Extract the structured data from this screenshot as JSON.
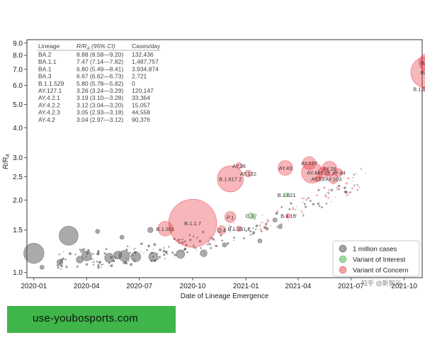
{
  "chart_data": {
    "type": "scatter",
    "xlabel": "Date of Lineage Emergence",
    "ylabel": "R/R",
    "ylabel_sub": "A",
    "xlim": [
      "2019-12-20",
      "2021-11-01"
    ],
    "ylim": [
      0.95,
      9.3
    ],
    "yscale": "log",
    "xticks": [
      {
        "date": "2020-01-01",
        "label": "2020-01"
      },
      {
        "date": "2020-04-01",
        "label": "2020-04"
      },
      {
        "date": "2020-07-01",
        "label": "2020-07"
      },
      {
        "date": "2020-10-01",
        "label": "2020-10"
      },
      {
        "date": "2021-01-01",
        "label": "2021-01"
      },
      {
        "date": "2021-04-01",
        "label": "2021-04"
      },
      {
        "date": "2021-07-01",
        "label": "2021-07"
      },
      {
        "date": "2021-10-01",
        "label": "2021-10"
      }
    ],
    "yticks": [
      {
        "value": 1.0,
        "label": "1.0"
      },
      {
        "value": 1.5,
        "label": "1.5"
      },
      {
        "value": 2.0,
        "label": "2.0"
      },
      {
        "value": 2.5,
        "label": "2.5"
      },
      {
        "value": 3.0,
        "label": "3.0"
      },
      {
        "value": 4.0,
        "label": "4.0"
      },
      {
        "value": 5.0,
        "label": "5.0"
      },
      {
        "value": 6.0,
        "label": "6.0"
      },
      {
        "value": 7.0,
        "label": "7.0"
      },
      {
        "value": 8.0,
        "label": "8.0"
      },
      {
        "value": 9.0,
        "label": "9.0"
      }
    ],
    "colors": {
      "other": "#555555",
      "interest": "#4cb84c",
      "concern": "#e8303a"
    },
    "table": {
      "headers": [
        "Lineage",
        "R/R_A (95% CI)",
        "Cases/day"
      ],
      "rows": [
        [
          "BA.2",
          "8.88 (8.58—9.20)",
          "132,436"
        ],
        [
          "BA.1.1",
          "7.47 (7.14—7.82)",
          "1,487,757"
        ],
        [
          "BA.1",
          "6.80 (5.49—8.41)",
          "3,934,874"
        ],
        [
          "BA.3",
          "6.67 (6.62—6.73)",
          "2,721"
        ],
        [
          "B.1.1.529",
          "5.80 (5.78—5.82)",
          "0"
        ],
        [
          "AY.127.1",
          "3.26 (3.24—3.29)",
          "120,147"
        ],
        [
          "AY.4.2.1",
          "3.19 (3.10—3.28)",
          "33,364"
        ],
        [
          "AY.4.2.2",
          "3.12 (3.04—3.20)",
          "15,057"
        ],
        [
          "AY.4.2.3",
          "3.05 (2.93—3.18)",
          "44,558"
        ],
        [
          "AY.4.2",
          "3.04 (2.97—3.12)",
          "90,376"
        ]
      ]
    },
    "legend": {
      "placement": "bottom-right",
      "entries": [
        {
          "label": "1 million cases",
          "category": "other"
        },
        {
          "label": "Variant of Interest",
          "category": "interest"
        },
        {
          "label": "Variant of Concern",
          "category": "concern"
        }
      ]
    },
    "points": [
      {
        "label": "BA.2",
        "x": "2021-11-25",
        "y": 8.88,
        "cases": 132436,
        "category": "concern"
      },
      {
        "label": "BA.1.1",
        "x": "2021-11-12",
        "y": 7.47,
        "cases": 1487757,
        "category": "concern"
      },
      {
        "label": "BA.1",
        "x": "2021-11-08",
        "y": 6.8,
        "cases": 3934874,
        "category": "concern"
      },
      {
        "label": "B.1.1.529",
        "x": "2021-11-05",
        "y": 5.8,
        "cases": 0,
        "category": "concern"
      },
      {
        "label": "AY.36",
        "x": "2020-12-20",
        "y": 2.78,
        "cases": 150000,
        "category": "concern"
      },
      {
        "label": "B.1.617.2",
        "x": "2020-12-05",
        "y": 2.45,
        "cases": 2800000,
        "category": "concern"
      },
      {
        "label": "AY.122",
        "x": "2021-01-05",
        "y": 2.58,
        "cases": 200000,
        "category": "concern"
      },
      {
        "label": "AY.43",
        "x": "2021-03-10",
        "y": 2.72,
        "cases": 900000,
        "category": "concern"
      },
      {
        "label": "AY.127",
        "x": "2021-04-20",
        "y": 2.85,
        "cases": 700000,
        "category": "concern"
      },
      {
        "label": "AY.4",
        "x": "2021-04-25",
        "y": 2.6,
        "cases": 1800000,
        "category": "concern"
      },
      {
        "label": "AY.26",
        "x": "2021-05-25",
        "y": 2.7,
        "cases": 900000,
        "category": "concern"
      },
      {
        "label": "AY.59",
        "x": "2021-05-05",
        "y": 2.45,
        "cases": 120000,
        "category": "concern"
      },
      {
        "label": "AY.103",
        "x": "2021-06-01",
        "y": 2.45,
        "cases": 350000,
        "category": "concern"
      },
      {
        "label": "AY.44",
        "x": "2021-06-10",
        "y": 2.6,
        "cases": 250000,
        "category": "concern"
      },
      {
        "label": "AY.25",
        "x": "2021-05-15",
        "y": 2.6,
        "cases": 500000,
        "category": "concern"
      },
      {
        "label": "B.1.621",
        "x": "2021-03-12",
        "y": 2.1,
        "cases": 50000,
        "category": "interest"
      },
      {
        "label": "C.37",
        "x": "2021-01-10",
        "y": 1.72,
        "cases": 150000,
        "category": "interest"
      },
      {
        "label": "B.1.1.7",
        "x": "2020-10-01",
        "y": 1.6,
        "cases": 9500000,
        "category": "concern"
      },
      {
        "label": "P.1",
        "x": "2020-12-05",
        "y": 1.7,
        "cases": 500000,
        "category": "concern"
      },
      {
        "label": "Q.4",
        "x": "2020-11-20",
        "y": 1.5,
        "cases": 300000,
        "category": "concern"
      },
      {
        "label": "B.1.351.2",
        "x": "2020-12-20",
        "y": 1.52,
        "cases": 120000,
        "category": "concern"
      },
      {
        "label": "B.1.351",
        "x": "2020-08-15",
        "y": 1.52,
        "cases": 900000,
        "category": "concern"
      },
      {
        "label": "B.1.15",
        "x": "2021-03-15",
        "y": 1.72,
        "cases": 60000,
        "category": "concern"
      },
      {
        "label": "",
        "x": "2020-01-01",
        "y": 1.2,
        "cases": 1700000,
        "category": "other"
      },
      {
        "label": "",
        "x": "2020-03-01",
        "y": 1.42,
        "cases": 1500000,
        "category": "other"
      },
      {
        "label": "",
        "x": "2020-04-20",
        "y": 1.48,
        "cases": 60000,
        "category": "other"
      },
      {
        "label": "",
        "x": "2020-06-01",
        "y": 1.4,
        "cases": 40000,
        "category": "other"
      },
      {
        "label": "",
        "x": "2020-07-20",
        "y": 1.5,
        "cases": 120000,
        "category": "other"
      },
      {
        "label": "",
        "x": "2020-04-01",
        "y": 1.17,
        "cases": 400000,
        "category": "other"
      },
      {
        "label": "",
        "x": "2020-05-10",
        "y": 1.15,
        "cases": 350000,
        "category": "other"
      },
      {
        "label": "",
        "x": "2020-06-05",
        "y": 1.17,
        "cases": 500000,
        "category": "other"
      },
      {
        "label": "",
        "x": "2020-06-25",
        "y": 1.16,
        "cases": 400000,
        "category": "other"
      },
      {
        "label": "",
        "x": "2020-07-25",
        "y": 1.16,
        "cases": 350000,
        "category": "other"
      },
      {
        "label": "",
        "x": "2020-03-20",
        "y": 1.13,
        "cases": 200000,
        "category": "other"
      },
      {
        "label": "",
        "x": "2020-05-25",
        "y": 1.18,
        "cases": 250000,
        "category": "other"
      },
      {
        "label": "",
        "x": "2020-09-10",
        "y": 1.19,
        "cases": 300000,
        "category": "other"
      },
      {
        "label": "",
        "x": "2020-10-20",
        "y": 1.2,
        "cases": 200000,
        "category": "other"
      },
      {
        "label": "",
        "x": "2020-02-15",
        "y": 1.1,
        "cases": 150000,
        "category": "other"
      },
      {
        "label": "",
        "x": "2020-01-15",
        "y": 1.05,
        "cases": 60000,
        "category": "other"
      },
      {
        "label": "",
        "x": "2020-11-25",
        "y": 1.3,
        "cases": 80000,
        "category": "other"
      },
      {
        "label": "",
        "x": "2021-01-25",
        "y": 1.35,
        "cases": 50000,
        "category": "other"
      },
      {
        "label": "",
        "x": "2021-03-01",
        "y": 1.55,
        "cases": 70000,
        "category": "other"
      },
      {
        "label": "",
        "x": "2021-02-20",
        "y": 1.65,
        "cases": 40000,
        "category": "other"
      }
    ]
  },
  "watermark": "知乎",
  "watermark_name": "新智元",
  "banner_text": "use-youbosports.com"
}
